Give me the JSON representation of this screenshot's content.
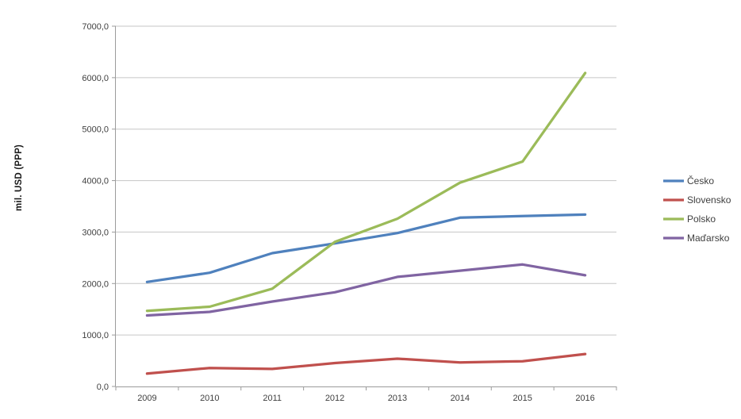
{
  "chart_data": {
    "type": "line",
    "title": "",
    "xlabel": "",
    "ylabel": "mil. USD (PPP)",
    "categories": [
      "2009",
      "2010",
      "2011",
      "2012",
      "2013",
      "2014",
      "2015",
      "2016"
    ],
    "y_ticks": [
      "0,0",
      "1000,0",
      "2000,0",
      "3000,0",
      "4000,0",
      "5000,0",
      "6000,0",
      "7000,0"
    ],
    "ylim": [
      0,
      7000
    ],
    "grid": true,
    "legend_position": "right",
    "series": [
      {
        "name": "Česko",
        "color": "#4F81BD",
        "values": [
          2030,
          2210,
          2590,
          2780,
          2980,
          3280,
          3310,
          3340
        ]
      },
      {
        "name": "Slovensko",
        "color": "#C0504D",
        "values": [
          250,
          360,
          340,
          455,
          540,
          465,
          490,
          630
        ]
      },
      {
        "name": "Polsko",
        "color": "#9BBB59",
        "values": [
          1470,
          1550,
          1900,
          2810,
          3260,
          3960,
          4370,
          6090
        ]
      },
      {
        "name": "Maďarsko",
        "color": "#8064A2",
        "values": [
          1380,
          1450,
          1650,
          1830,
          2130,
          2250,
          2370,
          2160
        ]
      }
    ],
    "colors": {
      "gridline": "#c6c6c6",
      "axis": "#9b9b9b",
      "tick_text": "#3f3f3f"
    }
  }
}
